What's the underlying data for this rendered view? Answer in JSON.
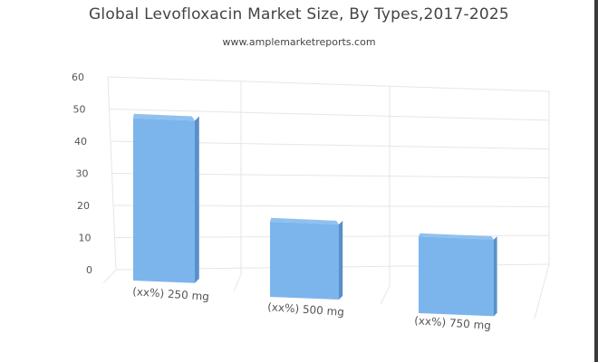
{
  "header": {
    "title": "Global Levofloxacin Market Size, By Types,2017-2025",
    "subtitle": "www.amplemarketreports.com"
  },
  "colors": {
    "bar_front": "#7cb5ec",
    "bar_side": "#5a8fc9",
    "bar_top": "#8fc1f0",
    "grid": "#e6e6e6"
  },
  "chart_data": {
    "type": "bar",
    "categories": [
      "(xx%) 250 mg",
      "(xx%) 500 mg",
      "(xx%) 750 mg"
    ],
    "values": [
      49,
      20,
      14
    ],
    "yticks": [
      0,
      10,
      20,
      30,
      40,
      50,
      60
    ],
    "ylim": [
      0,
      60
    ],
    "title": "Global Levofloxacin Market Size, By Types,2017-2025",
    "subtitle": "www.amplemarketreports.com",
    "grid": true,
    "legend": false,
    "style": "3d"
  }
}
